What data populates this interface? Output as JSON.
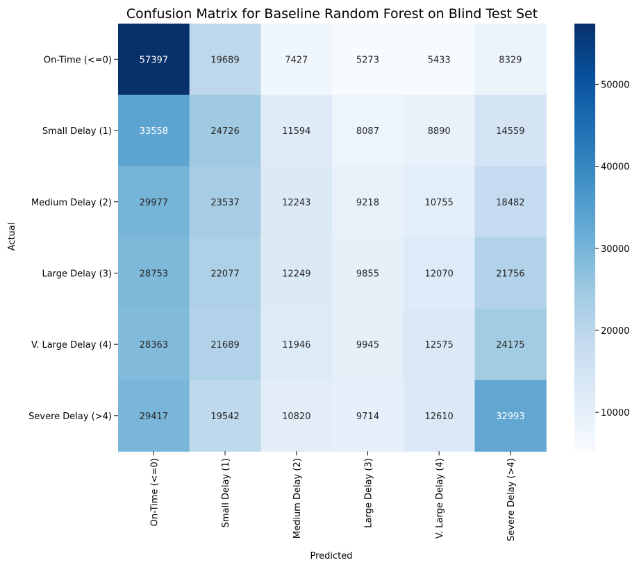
{
  "chart_data": {
    "type": "heatmap",
    "title": "Confusion Matrix for Baseline Random Forest on Blind Test Set",
    "xlabel": "Predicted",
    "ylabel": "Actual",
    "x_categories": [
      "On-Time (<=0)",
      "Small Delay (1)",
      "Medium Delay (2)",
      "Large Delay (3)",
      "V. Large Delay (4)",
      "Severe Delay (>4)"
    ],
    "y_categories": [
      "On-Time (<=0)",
      "Small Delay (1)",
      "Medium Delay (2)",
      "Large Delay (3)",
      "V. Large Delay (4)",
      "Severe Delay (>4)"
    ],
    "values": [
      [
        57397,
        19689,
        7427,
        5273,
        5433,
        8329
      ],
      [
        33558,
        24726,
        11594,
        8087,
        8890,
        14559
      ],
      [
        29977,
        23537,
        12243,
        9218,
        10755,
        18482
      ],
      [
        28753,
        22077,
        12249,
        9855,
        12070,
        21756
      ],
      [
        28363,
        21689,
        11946,
        9945,
        12575,
        24175
      ],
      [
        29417,
        19542,
        10820,
        9714,
        12610,
        32993
      ]
    ],
    "colormap": "Blues",
    "colorbar": {
      "min": 5273,
      "max": 57397,
      "ticks": [
        10000,
        20000,
        30000,
        40000,
        50000
      ]
    },
    "grid": false,
    "legend": "colorbar-right"
  }
}
